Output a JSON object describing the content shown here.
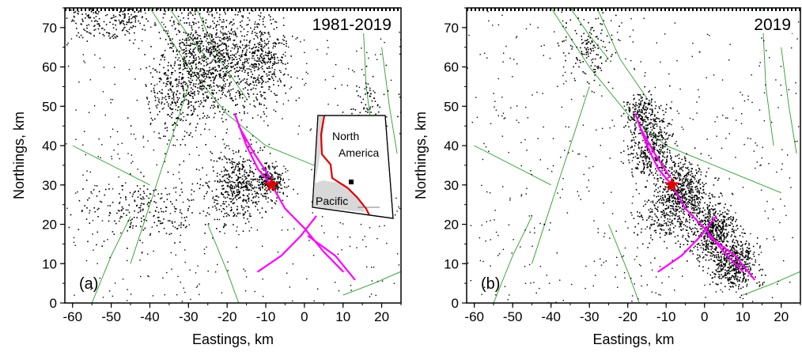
{
  "chart_data": [
    {
      "type": "scatter",
      "panel_tag": "(a)",
      "period_label": "1981-2019",
      "xlabel": "Eastings, km",
      "ylabel": "Northings, km",
      "xlim": [
        -62,
        25
      ],
      "ylim": [
        0,
        75
      ],
      "x_ticks": [
        "-60",
        "-50",
        "-40",
        "-30",
        "-20",
        "-10",
        "0",
        "10",
        "20"
      ],
      "y_ticks": [
        "0",
        "10",
        "20",
        "30",
        "40",
        "50",
        "60",
        "70"
      ],
      "grid": false,
      "epicenter": {
        "x": -8.5,
        "y": 30
      },
      "seismicity_clusters": [
        {
          "x": -28,
          "y": 62,
          "sx": 5,
          "sy": 7,
          "n": 700
        },
        {
          "x": -18,
          "y": 62,
          "sx": 5,
          "sy": 7,
          "n": 500
        },
        {
          "x": -10,
          "y": 62,
          "sx": 3,
          "sy": 5,
          "n": 250
        },
        {
          "x": -34,
          "y": 52,
          "sx": 4,
          "sy": 5,
          "n": 200
        },
        {
          "x": -46,
          "y": 72,
          "sx": 2,
          "sy": 2,
          "n": 100
        },
        {
          "x": -17,
          "y": 30,
          "sx": 4,
          "sy": 4,
          "n": 450
        },
        {
          "x": -9,
          "y": 31,
          "sx": 2,
          "sy": 2,
          "n": 220
        },
        {
          "x": -40,
          "y": 24,
          "sx": 10,
          "sy": 4,
          "n": 260
        },
        {
          "x": 17,
          "y": 50,
          "sx": 3,
          "sy": 4,
          "n": 80
        },
        {
          "x": -55,
          "y": 72,
          "sx": 4,
          "sy": 3,
          "n": 120
        }
      ],
      "rupture_traces": [
        [
          [
            -18,
            48
          ],
          [
            -15,
            40
          ],
          [
            -12,
            34
          ],
          [
            -8.5,
            30
          ],
          [
            -5,
            24
          ],
          [
            0,
            19
          ],
          [
            5,
            13
          ],
          [
            10,
            8
          ]
        ],
        [
          [
            -12,
            8
          ],
          [
            -6,
            12
          ],
          [
            -1,
            17
          ],
          [
            3,
            22
          ]
        ],
        [
          [
            -17,
            45
          ],
          [
            -13,
            38
          ],
          [
            -9,
            32
          ]
        ],
        [
          [
            1,
            17
          ],
          [
            8,
            12
          ],
          [
            13,
            6
          ]
        ]
      ],
      "fault_traces": [
        [
          [
            -40,
            75
          ],
          [
            -30,
            60
          ],
          [
            -20,
            48
          ],
          [
            -10,
            40
          ],
          [
            0,
            36
          ],
          [
            10,
            32
          ],
          [
            20,
            28
          ]
        ],
        [
          [
            15,
            75
          ],
          [
            16,
            55
          ],
          [
            18,
            40
          ]
        ],
        [
          [
            -45,
            10
          ],
          [
            -40,
            25
          ],
          [
            -35,
            40
          ],
          [
            -30,
            55
          ]
        ],
        [
          [
            -55,
            0
          ],
          [
            -50,
            12
          ],
          [
            -45,
            22
          ]
        ],
        [
          [
            -25,
            20
          ],
          [
            -20,
            8
          ],
          [
            -17,
            0
          ]
        ],
        [
          [
            10,
            2
          ],
          [
            18,
            5
          ],
          [
            25,
            8
          ]
        ],
        [
          [
            -28,
            75
          ],
          [
            -22,
            62
          ],
          [
            -15,
            52
          ]
        ],
        [
          [
            -35,
            75
          ],
          [
            -30,
            68
          ],
          [
            -25,
            62
          ]
        ],
        [
          [
            20,
            65
          ],
          [
            22,
            50
          ],
          [
            24,
            38
          ]
        ],
        [
          [
            -60,
            40
          ],
          [
            -50,
            35
          ],
          [
            -40,
            30
          ]
        ]
      ],
      "inset": {
        "labels": [
          "North",
          "America",
          "Pacific"
        ],
        "location_marker": {
          "lon": -117.6,
          "lat": 35.8
        }
      }
    },
    {
      "type": "scatter",
      "panel_tag": "(b)",
      "period_label": "2019",
      "xlabel": "Eastings, km",
      "ylabel": "Northings, km",
      "xlim": [
        -62,
        25
      ],
      "ylim": [
        0,
        75
      ],
      "x_ticks": [
        "-60",
        "-50",
        "-40",
        "-30",
        "-20",
        "-10",
        "0",
        "10",
        "20"
      ],
      "y_ticks": [
        "0",
        "10",
        "20",
        "30",
        "40",
        "50",
        "60",
        "70"
      ],
      "grid": false,
      "epicenter": {
        "x": -8.5,
        "y": 30
      },
      "seismicity_clusters": [
        {
          "x": -14,
          "y": 40,
          "sx": 3,
          "sy": 5,
          "n": 450
        },
        {
          "x": -6,
          "y": 28,
          "sx": 3,
          "sy": 4,
          "n": 550
        },
        {
          "x": 2,
          "y": 18,
          "sx": 3,
          "sy": 4,
          "n": 600
        },
        {
          "x": 8,
          "y": 10,
          "sx": 3,
          "sy": 3,
          "n": 450
        },
        {
          "x": -17,
          "y": 49,
          "sx": 2,
          "sy": 2,
          "n": 160
        },
        {
          "x": -30,
          "y": 65,
          "sx": 3,
          "sy": 4,
          "n": 140
        },
        {
          "x": -10,
          "y": 22,
          "sx": 4,
          "sy": 4,
          "n": 200
        }
      ],
      "rupture_traces": [
        [
          [
            -18,
            48
          ],
          [
            -15,
            40
          ],
          [
            -12,
            34
          ],
          [
            -8.5,
            30
          ],
          [
            -5,
            24
          ],
          [
            0,
            19
          ],
          [
            5,
            13
          ],
          [
            10,
            8
          ]
        ],
        [
          [
            -12,
            8
          ],
          [
            -6,
            12
          ],
          [
            -1,
            17
          ],
          [
            3,
            22
          ]
        ],
        [
          [
            -17,
            45
          ],
          [
            -13,
            38
          ],
          [
            -9,
            32
          ]
        ],
        [
          [
            1,
            17
          ],
          [
            8,
            12
          ],
          [
            13,
            6
          ]
        ]
      ],
      "fault_traces": [
        [
          [
            -40,
            75
          ],
          [
            -30,
            60
          ],
          [
            -20,
            48
          ],
          [
            -10,
            40
          ],
          [
            0,
            36
          ],
          [
            10,
            32
          ],
          [
            20,
            28
          ]
        ],
        [
          [
            15,
            75
          ],
          [
            16,
            55
          ],
          [
            18,
            40
          ]
        ],
        [
          [
            -45,
            10
          ],
          [
            -40,
            25
          ],
          [
            -35,
            40
          ],
          [
            -30,
            55
          ]
        ],
        [
          [
            -55,
            0
          ],
          [
            -50,
            12
          ],
          [
            -45,
            22
          ]
        ],
        [
          [
            -25,
            20
          ],
          [
            -20,
            8
          ],
          [
            -17,
            0
          ]
        ],
        [
          [
            10,
            2
          ],
          [
            18,
            5
          ],
          [
            25,
            8
          ]
        ],
        [
          [
            -28,
            75
          ],
          [
            -22,
            62
          ],
          [
            -15,
            52
          ]
        ],
        [
          [
            -35,
            75
          ],
          [
            -30,
            68
          ],
          [
            -25,
            62
          ]
        ],
        [
          [
            20,
            65
          ],
          [
            22,
            50
          ],
          [
            24,
            38
          ]
        ],
        [
          [
            -60,
            40
          ],
          [
            -50,
            35
          ],
          [
            -40,
            30
          ]
        ]
      ]
    }
  ],
  "colors": {
    "seismicity": "#000000",
    "rupture": "#ff00ff",
    "faults": "#2e9e2e",
    "epicenter": "#e00000",
    "plate_boundary": "#e00000",
    "pacific_plate": "#d8d8d8"
  }
}
